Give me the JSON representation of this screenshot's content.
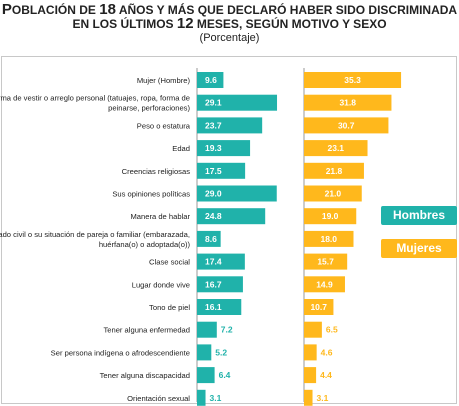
{
  "title": {
    "line1_a": "P",
    "line1_b": "OBLACIÓN DE ",
    "line1_c": "18",
    "line1_d": " AÑOS Y MÁS QUE DECLARÓ HABER SIDO DISCRIMINADA",
    "line2_a": "EN LOS ÚLTIMOS ",
    "line2_b": "12",
    "line2_c": " MESES, SEGÚN MOTIVO Y SEXO"
  },
  "subtitle": "(Porcentaje)",
  "colors": {
    "hombres": "#20b2aa",
    "mujeres": "#ffb81c"
  },
  "chart_data": {
    "type": "bar",
    "title": "POBLACIÓN DE 18 AÑOS Y MÁS QUE DECLARÓ HABER SIDO DISCRIMINADA EN LOS ÚLTIMOS 12 MESES, SEGÚN MOTIVO Y SEXO",
    "subtitle": "(Porcentaje)",
    "orientation": "horizontal",
    "legend_placement": "right",
    "grid": false,
    "xlim": [
      0,
      40
    ],
    "categories": [
      [
        "Mujer (Hombre)"
      ],
      [
        "Forma de vestir o arreglo personal (tatuajes, ropa, forma de",
        "peinarse, perforaciones)"
      ],
      [
        "Peso o estatura"
      ],
      [
        "Edad"
      ],
      [
        "Creencias religiosas"
      ],
      [
        "Sus opiniones políticas"
      ],
      [
        "Manera de hablar"
      ],
      [
        "Estado civil o su situación de pareja o familiar (embarazada,",
        "huérfana(o) o adoptada(o))"
      ],
      [
        "Clase social"
      ],
      [
        "Lugar donde vive"
      ],
      [
        "Tono de piel"
      ],
      [
        "Tener alguna enfermedad"
      ],
      [
        "Ser persona indígena o afrodescendiente"
      ],
      [
        "Tener alguna discapacidad"
      ],
      [
        "Orientación sexual"
      ]
    ],
    "series": [
      {
        "name": "Hombres",
        "values": [
          "9.6",
          "29.1",
          "23.7",
          "19.3",
          "17.5",
          "29.0",
          "24.8",
          "8.6",
          "17.4",
          "16.7",
          "16.1",
          "7.2",
          "5.2",
          "6.4",
          "3.1"
        ]
      },
      {
        "name": "Mujeres",
        "values": [
          "35.3",
          "31.8",
          "30.7",
          "23.1",
          "21.8",
          "21.0",
          "19.0",
          "18.0",
          "15.7",
          "14.9",
          "10.7",
          "6.5",
          "4.6",
          "4.4",
          "3.1"
        ]
      }
    ]
  }
}
